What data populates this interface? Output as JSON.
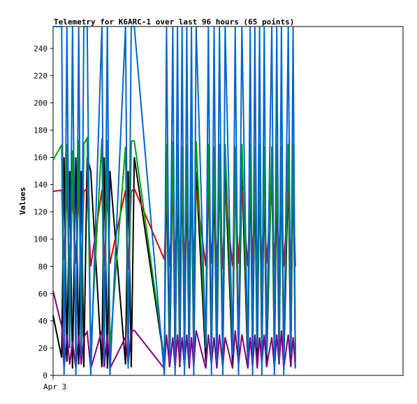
{
  "chart_data": {
    "type": "line",
    "title": "Telemetry for K6ARC-1 over last 96 hours (65 points)",
    "xlabel": "",
    "ylabel": "Values",
    "ylim": [
      0,
      256
    ],
    "yticks": [
      0,
      20,
      40,
      60,
      80,
      100,
      120,
      140,
      160,
      180,
      200,
      220,
      240
    ],
    "x_tick_labels": [
      {
        "label": "Apr 3",
        "x": 0
      }
    ],
    "grid": false,
    "legend": "none",
    "x": [
      0,
      0.59,
      0.75,
      0.95,
      1.14,
      1.33,
      1.56,
      1.76,
      1.93,
      2.11,
      2.34,
      2.58,
      3.35,
      3.5,
      3.72,
      3.9,
      4.97,
      5.15,
      5.36,
      5.57,
      7.63,
      7.78,
      7.99,
      8.21,
      8.37,
      8.53,
      8.69,
      8.85,
      9.01,
      9.17,
      9.33,
      9.49,
      9.65,
      9.81,
      10.47,
      10.65,
      10.86,
      11.04,
      11.23,
      11.41,
      11.64,
      11.8,
      12.31,
      12.49,
      12.72,
      12.95,
      13.36,
      13.52,
      13.68,
      13.84,
      14.0,
      14.16,
      14.32,
      14.48,
      14.64,
      15.0,
      15.18,
      15.34,
      15.5,
      15.66,
      15.82,
      16.13,
      16.3,
      16.46,
      16.62
    ],
    "series": [
      {
        "name": "",
        "color": "#000000",
        "values": [
          44,
          13,
          160,
          10,
          150,
          5,
          160,
          8,
          150,
          6,
          160,
          150,
          6,
          160,
          5,
          150,
          8,
          150,
          6,
          160,
          10,
          150,
          6,
          160,
          8,
          150,
          6,
          160,
          10,
          150,
          8,
          160,
          6,
          150,
          10,
          160,
          8,
          150,
          6,
          160,
          6,
          150,
          8,
          160,
          10,
          150,
          6,
          160,
          8,
          150,
          6,
          160,
          10,
          150,
          8,
          160,
          6,
          150,
          10,
          160,
          6,
          150,
          8,
          160,
          10
        ]
      },
      {
        "name": "",
        "color": "#dd0000",
        "values": [
          135,
          136,
          85,
          136,
          80,
          135,
          82,
          136,
          78,
          135,
          137,
          80,
          136,
          80,
          136,
          82,
          136,
          78,
          135,
          137,
          85,
          136,
          80,
          136,
          82,
          136,
          80,
          136,
          78,
          136,
          80,
          136,
          82,
          137,
          80,
          136,
          82,
          136,
          80,
          136,
          78,
          136,
          80,
          137,
          82,
          136,
          80,
          136,
          82,
          136,
          80,
          136,
          78,
          136,
          82,
          136,
          80,
          136,
          82,
          137,
          80,
          136,
          82,
          136,
          80
        ]
      },
      {
        "name": "",
        "color": "#00a000",
        "values": [
          158,
          169,
          10,
          170,
          20,
          165,
          25,
          173,
          15,
          170,
          174,
          20,
          174,
          15,
          173,
          20,
          168,
          15,
          172,
          172,
          12,
          170,
          18,
          172,
          15,
          170,
          20,
          168,
          15,
          170,
          18,
          172,
          15,
          172,
          20,
          170,
          15,
          168,
          20,
          170,
          15,
          170,
          18,
          168,
          20,
          170,
          15,
          170,
          18,
          168,
          20,
          170,
          15,
          168,
          18,
          168,
          20,
          170,
          15,
          168,
          18,
          170,
          20,
          170,
          18
        ]
      },
      {
        "name": "",
        "color": "#800080",
        "values": [
          62,
          36,
          5,
          30,
          8,
          25,
          5,
          30,
          8,
          28,
          32,
          5,
          33,
          6,
          30,
          5,
          28,
          8,
          33,
          33,
          5,
          30,
          6,
          28,
          5,
          30,
          8,
          28,
          6,
          30,
          5,
          28,
          6,
          33,
          5,
          30,
          8,
          28,
          5,
          30,
          6,
          28,
          5,
          33,
          8,
          30,
          5,
          28,
          6,
          30,
          5,
          28,
          8,
          30,
          6,
          28,
          5,
          30,
          8,
          33,
          5,
          30,
          6,
          28,
          5
        ]
      },
      {
        "name": "",
        "color": "#0066cc",
        "values": [
          256,
          256,
          0,
          256,
          20,
          256,
          0,
          256,
          15,
          256,
          256,
          0,
          256,
          10,
          256,
          0,
          256,
          5,
          256,
          256,
          0,
          256,
          10,
          256,
          0,
          256,
          15,
          256,
          0,
          256,
          10,
          256,
          0,
          256,
          20,
          256,
          0,
          256,
          10,
          256,
          0,
          256,
          15,
          256,
          0,
          256,
          10,
          256,
          0,
          256,
          20,
          256,
          0,
          256,
          15,
          256,
          0,
          256,
          10,
          256,
          0,
          256,
          15,
          256,
          5
        ]
      }
    ]
  }
}
